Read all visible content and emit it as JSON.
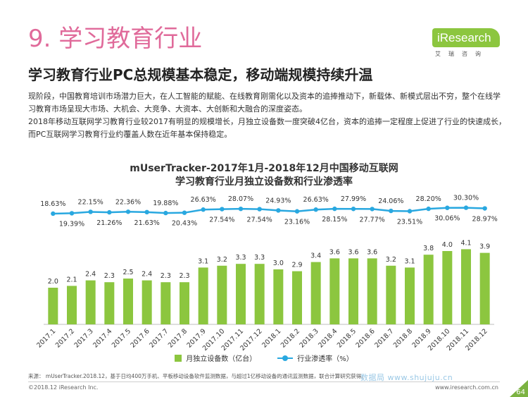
{
  "header": {
    "section_title": "9. 学习教育行业",
    "subtitle": "学习教育行业PC总规模基本稳定，移动端规模持续升温",
    "logo": {
      "text": "iResearch",
      "sub": "艾瑞咨询"
    }
  },
  "body": {
    "paragraph1": "现阶段，中国教育培训市场潜力巨大，在人工智能的赋能、在线教育刚需化以及资本的追捧推动下，新载体、新模式层出不穷，整个在线学习教育市场呈现大市场、大机会、大竞争、大资本、大创新和大融合的深度姿态。",
    "paragraph2": "2018年移动互联网学习教育行业较2017有明显的规模增长，月独立设备数一度突破4亿台，资本的追捧一定程度上促进了行业的快速成长，而PC互联网学习教育行业约覆盖人数在近年基本保持稳定。"
  },
  "chart_data": {
    "type": "bar+line",
    "title_line1": "mUserTracker-2017年1月-2018年12月中国移动互联网",
    "title_line2": "学习教育行业月独立设备数和行业渗透率",
    "categories": [
      "2017.1",
      "2017.2",
      "2017.3",
      "2017.4",
      "2017.5",
      "2017.6",
      "2017.7",
      "2017.8",
      "2017.9",
      "2017.10",
      "2017.11",
      "2017.12",
      "2018.1",
      "2018.2",
      "2018.3",
      "2018.4",
      "2018.5",
      "2018.6",
      "2018.7",
      "2018.8",
      "2018.9",
      "2018.10",
      "2018.11",
      "2018.12"
    ],
    "bars": {
      "name": "月独立设备数（亿台）",
      "values": [
        2.0,
        2.1,
        2.4,
        2.3,
        2.5,
        2.4,
        2.3,
        2.3,
        3.1,
        3.2,
        3.3,
        3.3,
        3.0,
        2.9,
        3.4,
        3.6,
        3.6,
        3.6,
        3.2,
        3.1,
        3.8,
        4.0,
        4.1,
        3.9
      ],
      "labels": [
        "2.0",
        "2.1",
        "2.4",
        "2.3",
        "2.5",
        "2.4",
        "2.3",
        "2.3",
        "3.1",
        "3.2",
        "3.3",
        "3.3",
        "3.0",
        "2.9",
        "3.4",
        "3.6",
        "3.6",
        "3.6",
        "3.2",
        "3.1",
        "3.8",
        "4.0",
        "4.1",
        "3.9"
      ],
      "color": "#8cc63f"
    },
    "line": {
      "name": "行业渗透率（%）",
      "values": [
        18.63,
        19.39,
        22.15,
        21.26,
        22.36,
        21.63,
        19.88,
        20.43,
        26.63,
        27.54,
        28.07,
        27.54,
        24.93,
        23.16,
        26.63,
        28.15,
        27.99,
        27.77,
        24.06,
        23.51,
        28.2,
        30.06,
        30.3,
        28.97
      ],
      "labels": [
        "18.63%",
        "19.39%",
        "22.15%",
        "21.26%",
        "22.36%",
        "21.63%",
        "19.88%",
        "20.43%",
        "26.63%",
        "27.54%",
        "28.07%",
        "27.54%",
        "24.93%",
        "23.16%",
        "26.63%",
        "28.15%",
        "27.99%",
        "27.77%",
        "24.06%",
        "23.51%",
        "28.20%",
        "30.06%",
        "30.30%",
        "28.97%"
      ],
      "label_pos": [
        "above",
        "below",
        "above",
        "below",
        "above",
        "below",
        "above",
        "below",
        "above",
        "below",
        "above",
        "below",
        "above",
        "below",
        "above",
        "below",
        "above",
        "below",
        "above",
        "below",
        "above",
        "below",
        "above",
        "below"
      ],
      "color": "#29a8e0"
    },
    "legend": [
      "月独立设备数（亿台）",
      "行业渗透率（%）"
    ],
    "legend_placement": "bottom"
  },
  "footer": {
    "source": "来源：  mUserTracker.2018.12，基于日均400万手机、平板移动设备软件监测数据，与超过1亿移动设备的通讯监测数据，联合计算研究获得。",
    "copyright": "©2018.12 iResearch Inc.",
    "website": "www.iresearch.com.cn",
    "page": "64",
    "watermark": "数据局 www.shujuju.cn"
  }
}
